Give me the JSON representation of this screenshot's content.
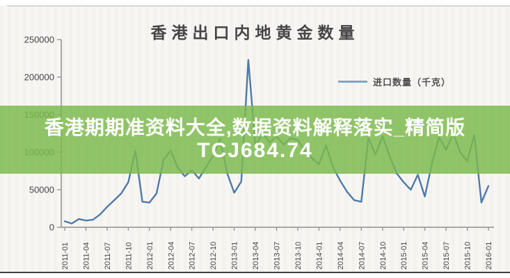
{
  "chart_data": {
    "type": "line",
    "title": "香港出口内地黄金数量",
    "legend": [
      {
        "name": "进口数量（千克）",
        "color": "#4e79a7"
      }
    ],
    "legend_position": "right-upper",
    "grid": false,
    "ylim": [
      0,
      250000
    ],
    "yticks": [
      0,
      50000,
      100000,
      150000,
      200000,
      250000
    ],
    "ytick_labels": [
      "0",
      "50000",
      "100000",
      "150000",
      "200000",
      "250000"
    ],
    "xtick_labels": [
      "2011-01",
      "2011-04",
      "2011-07",
      "2011-10",
      "2012-01",
      "2012-04",
      "2012-07",
      "2012-10",
      "2013-01",
      "2013-04",
      "2013-07",
      "2013-10",
      "2014-01",
      "2014-04",
      "2014-07",
      "2014-10",
      "2015-01",
      "2015-04",
      "2015-07",
      "2015-10",
      "2016-01"
    ],
    "x": [
      "2011-01",
      "2011-02",
      "2011-03",
      "2011-04",
      "2011-05",
      "2011-06",
      "2011-07",
      "2011-08",
      "2011-09",
      "2011-10",
      "2011-11",
      "2011-12",
      "2012-01",
      "2012-02",
      "2012-03",
      "2012-04",
      "2012-05",
      "2012-06",
      "2012-07",
      "2012-08",
      "2012-09",
      "2012-10",
      "2012-11",
      "2012-12",
      "2013-01",
      "2013-02",
      "2013-03",
      "2013-04",
      "2013-05",
      "2013-06",
      "2013-07",
      "2013-08",
      "2013-09",
      "2013-10",
      "2013-11",
      "2013-12",
      "2014-01",
      "2014-02",
      "2014-03",
      "2014-04",
      "2014-05",
      "2014-06",
      "2014-07",
      "2014-08",
      "2014-09",
      "2014-10",
      "2014-11",
      "2014-12",
      "2015-01",
      "2015-02",
      "2015-03",
      "2015-04",
      "2015-05",
      "2015-06",
      "2015-07",
      "2015-08",
      "2015-09",
      "2015-10",
      "2015-11",
      "2015-12",
      "2016-01"
    ],
    "values": [
      8000,
      5000,
      11000,
      9000,
      10000,
      17000,
      27000,
      36000,
      45000,
      60000,
      102000,
      34000,
      33000,
      45000,
      90000,
      102000,
      80000,
      68000,
      76000,
      65000,
      80000,
      95000,
      118000,
      72000,
      46000,
      61000,
      223000,
      108000,
      126000,
      113000,
      121000,
      110000,
      119000,
      116000,
      103000,
      92000,
      84000,
      109000,
      80000,
      62000,
      47000,
      36000,
      34000,
      119000,
      97000,
      121000,
      95000,
      72000,
      60000,
      50000,
      70000,
      41000,
      85000,
      120000,
      103000,
      125000,
      100000,
      88000,
      123000,
      33000,
      55000
    ]
  },
  "overlay": {
    "line1": "香港期期准资料大全,数据资料解释落实_精简版",
    "line2": "TCJ684.74",
    "band_color": "#7cba4e",
    "text_color": "#ffffff"
  },
  "legend": {
    "label": "进口数量（千克）"
  },
  "title": "香港出口内地黄金数量",
  "colors": {
    "line": "#4e79a7",
    "legend_line": "#7fa6c9",
    "axis": "#8f8f8f",
    "labels": "#454545",
    "background": "#f8f6f3"
  }
}
